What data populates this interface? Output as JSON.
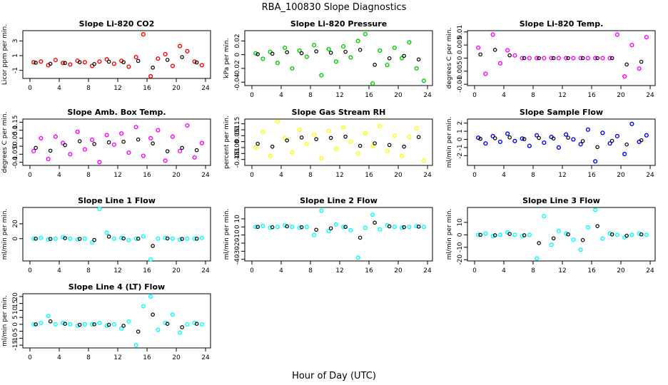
{
  "figure": {
    "title": "RBA_100830  Slope Diagnostics",
    "xlabel": "Hour of Day (UTC)"
  },
  "chart_data": [
    {
      "type": "scatter",
      "title": "Slope Li-820 CO2",
      "ylabel": "Licor ppm per min.",
      "xlim": [
        0,
        24
      ],
      "xticks": [
        0,
        4,
        8,
        12,
        16,
        20,
        24
      ],
      "ylim": [
        -2.1,
        4.4
      ],
      "yticks": [
        -1,
        1,
        3
      ],
      "color": "#ff0000",
      "x": [
        0.5,
        1.5,
        2.5,
        3.5,
        4.5,
        5.5,
        6.5,
        7.5,
        8.5,
        9.5,
        10.5,
        11.5,
        12.5,
        13.5,
        14.5,
        15.5,
        16.5,
        17.5,
        18.5,
        19.5,
        20.5,
        21.5,
        22.5,
        23.5
      ],
      "y": [
        0.1,
        0.2,
        -0.3,
        0.4,
        0.0,
        -0.2,
        0.3,
        0.1,
        -0.4,
        0.2,
        0.5,
        -0.1,
        0.3,
        -0.5,
        0.8,
        3.9,
        -1.8,
        0.6,
        1.2,
        -0.4,
        2.3,
        1.6,
        0.2,
        -0.3
      ]
    },
    {
      "type": "scatter",
      "title": "Slope Li-820 Pressure",
      "ylabel": "kPa per min.",
      "xlim": [
        0,
        24
      ],
      "xticks": [
        0,
        4,
        8,
        12,
        16,
        20,
        24
      ],
      "ylim": [
        -0.045,
        0.035
      ],
      "yticks": [
        -0.04,
        -0.02,
        0.0,
        0.02
      ],
      "color": "#00cc00",
      "x": [
        0.5,
        1.5,
        2.5,
        3.5,
        4.5,
        5.5,
        6.5,
        7.5,
        8.5,
        9.5,
        10.5,
        11.5,
        12.5,
        13.5,
        14.5,
        15.5,
        16.5,
        17.5,
        18.5,
        19.5,
        20.5,
        21.5,
        22.5,
        23.5
      ],
      "y": [
        0.002,
        -0.006,
        0.004,
        -0.012,
        0.01,
        -0.02,
        0.006,
        -0.003,
        0.014,
        -0.03,
        0.008,
        -0.01,
        0.012,
        -0.004,
        0.02,
        0.03,
        -0.042,
        0.006,
        -0.015,
        0.01,
        -0.005,
        0.018,
        -0.02,
        -0.038
      ]
    },
    {
      "type": "scatter",
      "title": "Slope Li-820 Temp.",
      "ylabel": "degrees C per min.",
      "xlim": [
        0,
        24
      ],
      "xticks": [
        0,
        4,
        8,
        12,
        16,
        20,
        24
      ],
      "ylim": [
        -0.0105,
        0.0105
      ],
      "yticks": [
        -0.01,
        -0.005,
        0.0,
        0.005,
        0.01
      ],
      "color": "#ff00ff",
      "x": [
        0.5,
        1.5,
        2.5,
        3.5,
        4.5,
        5.5,
        6.5,
        7.5,
        8.5,
        9.5,
        10.5,
        11.5,
        12.5,
        13.5,
        14.5,
        15.5,
        16.5,
        17.5,
        18.5,
        19.5,
        20.5,
        21.5,
        22.5,
        23.5
      ],
      "y": [
        0.004,
        -0.006,
        0.009,
        -0.002,
        0.003,
        0.001,
        0.0,
        0.0,
        0.0,
        0.0,
        0.0,
        0.0,
        0.0,
        0.0,
        0.0,
        0.0,
        0.0,
        0.0,
        0.0,
        0.009,
        -0.007,
        0.005,
        -0.004,
        0.008
      ]
    },
    {
      "type": "scatter",
      "title": "Slope Amb. Box Temp.",
      "ylabel": "degrees C per min.",
      "xlim": [
        0,
        24
      ],
      "xticks": [
        0,
        4,
        8,
        12,
        16,
        20,
        24
      ],
      "ylim": [
        -0.12,
        0.17
      ],
      "yticks": [
        -0.1,
        -0.05,
        0.0,
        0.05,
        0.1,
        0.15
      ],
      "color": "#ff00ff",
      "x": [
        0.5,
        1.5,
        2.5,
        3.5,
        4.5,
        5.5,
        6.5,
        7.5,
        8.5,
        9.5,
        10.5,
        11.5,
        12.5,
        13.5,
        14.5,
        15.5,
        16.5,
        17.5,
        18.5,
        19.5,
        20.5,
        21.5,
        22.5,
        23.5
      ],
      "y": [
        -0.03,
        0.05,
        -0.08,
        0.06,
        0.02,
        -0.05,
        0.09,
        -0.02,
        0.04,
        -0.1,
        0.07,
        0.01,
        0.08,
        -0.04,
        0.12,
        -0.06,
        0.05,
        0.1,
        -0.09,
        0.06,
        -0.03,
        0.13,
        -0.07,
        0.02
      ]
    },
    {
      "type": "scatter",
      "title": "Slope Gas Stream RH",
      "ylabel": "percent per min.",
      "xlim": [
        0,
        24
      ],
      "xticks": [
        0,
        4,
        8,
        12,
        16,
        20,
        24
      ],
      "ylim": [
        -0.2,
        0.19
      ],
      "yticks": [
        -0.15,
        -0.1,
        -0.05,
        0.0,
        0.05,
        0.1,
        0.15
      ],
      "color": "#ffff00",
      "x": [
        0.5,
        1.5,
        2.5,
        3.5,
        4.5,
        5.5,
        6.5,
        7.5,
        8.5,
        9.5,
        10.5,
        11.5,
        12.5,
        13.5,
        14.5,
        15.5,
        16.5,
        17.5,
        18.5,
        19.5,
        20.5,
        21.5,
        22.5,
        23.5
      ],
      "y": [
        -0.05,
        0.08,
        -0.12,
        0.17,
        0.03,
        -0.09,
        0.1,
        -0.02,
        0.06,
        -0.14,
        0.09,
        -0.06,
        0.12,
        0.0,
        -0.1,
        0.07,
        -0.04,
        0.13,
        -0.08,
        0.05,
        -0.12,
        0.04,
        0.11,
        -0.16
      ]
    },
    {
      "type": "scatter",
      "title": "Slope Sample Flow",
      "ylabel": "ml/min per min.",
      "xlim": [
        0,
        24
      ],
      "xticks": [
        0,
        4,
        8,
        12,
        16,
        20,
        24
      ],
      "ylim": [
        -3.2,
        2.5
      ],
      "yticks": [
        -2,
        -1,
        0,
        1,
        2
      ],
      "color": "#0000ff",
      "x": [
        0.5,
        1.5,
        2.5,
        3.5,
        4.5,
        5.5,
        6.5,
        7.5,
        8.5,
        9.5,
        10.5,
        11.5,
        12.5,
        13.5,
        14.5,
        15.5,
        16.5,
        17.5,
        18.5,
        19.5,
        20.5,
        21.5,
        22.5,
        23.5
      ],
      "y": [
        0.2,
        -0.5,
        0.4,
        -0.3,
        0.7,
        -0.2,
        0.1,
        -0.8,
        0.5,
        -0.4,
        0.3,
        -1.0,
        0.6,
        0.0,
        -0.6,
        1.2,
        -2.7,
        0.8,
        -0.5,
        0.4,
        -1.8,
        1.9,
        -0.3,
        0.5
      ]
    },
    {
      "type": "scatter",
      "title": "Slope Line 1 Flow",
      "ylabel": "ml/min per min.",
      "xlim": [
        0,
        24
      ],
      "xticks": [
        0,
        4,
        8,
        12,
        16,
        20,
        24
      ],
      "ylim": [
        -30,
        42
      ],
      "yticks": [
        0,
        20
      ],
      "color": "#00ffff",
      "x": [
        0.5,
        1.5,
        2.5,
        3.5,
        4.5,
        5.5,
        6.5,
        7.5,
        8.5,
        9.5,
        10.5,
        11.5,
        12.5,
        13.5,
        14.5,
        15.5,
        16.5,
        17.5,
        18.5,
        19.5,
        20.5,
        21.5,
        22.5,
        23.5
      ],
      "y": [
        0,
        1,
        -1,
        0,
        2,
        0,
        -1,
        0,
        -5,
        40,
        8,
        0,
        1,
        -2,
        0,
        3,
        -28,
        0,
        1,
        0,
        -1,
        0,
        0,
        1
      ]
    },
    {
      "type": "scatter",
      "title": "Slope Line 2 Flow",
      "ylabel": "ml/min per min.",
      "xlim": [
        0,
        24
      ],
      "xticks": [
        0,
        4,
        8,
        12,
        16,
        20,
        24
      ],
      "ylim": [
        -42,
        24
      ],
      "yticks": [
        -40,
        -30,
        -20,
        -10,
        0,
        10
      ],
      "color": "#00ffff",
      "x": [
        0.5,
        1.5,
        2.5,
        3.5,
        4.5,
        5.5,
        6.5,
        7.5,
        8.5,
        9.5,
        10.5,
        11.5,
        12.5,
        13.5,
        14.5,
        15.5,
        16.5,
        17.5,
        18.5,
        19.5,
        20.5,
        21.5,
        22.5,
        23.5
      ],
      "y": [
        0,
        1,
        -1,
        0,
        2,
        0,
        -1,
        0,
        -10,
        20,
        -5,
        3,
        0,
        -4,
        -38,
        -1,
        15,
        -3,
        2,
        0,
        -1,
        0,
        1,
        0
      ]
    },
    {
      "type": "scatter",
      "title": "Slope Line 3 Flow",
      "ylabel": "ml/min per min.",
      "xlim": [
        0,
        24
      ],
      "xticks": [
        0,
        4,
        8,
        12,
        16,
        20,
        24
      ],
      "ylim": [
        -21,
        22
      ],
      "yticks": [
        -20,
        -10,
        0,
        10
      ],
      "color": "#00ffff",
      "x": [
        0.5,
        1.5,
        2.5,
        3.5,
        4.5,
        5.5,
        6.5,
        7.5,
        8.5,
        9.5,
        10.5,
        11.5,
        12.5,
        13.5,
        14.5,
        15.5,
        16.5,
        17.5,
        18.5,
        19.5,
        20.5,
        21.5,
        22.5,
        23.5
      ],
      "y": [
        0,
        1,
        -1,
        0,
        2,
        0,
        -1,
        0,
        -19,
        15,
        -8,
        3,
        1,
        -4,
        -12,
        6,
        20,
        -3,
        1,
        0,
        -2,
        0,
        1,
        0
      ]
    },
    {
      "type": "scatter",
      "title": "Slope Line 4 (LT) Flow",
      "ylabel": "ml/min per min.",
      "xlim": [
        0,
        24
      ],
      "xticks": [
        0,
        4,
        8,
        12,
        16,
        20,
        24
      ],
      "ylim": [
        -17,
        22
      ],
      "yticks": [
        -15,
        -10,
        -5,
        0,
        5,
        10,
        15,
        20
      ],
      "color": "#00ffff",
      "x": [
        0.5,
        1.5,
        2.5,
        3.5,
        4.5,
        5.5,
        6.5,
        7.5,
        8.5,
        9.5,
        10.5,
        11.5,
        12.5,
        13.5,
        14.5,
        15.5,
        16.5,
        17.5,
        18.5,
        19.5,
        20.5,
        21.5,
        22.5,
        23.5
      ],
      "y": [
        0,
        1,
        6,
        0,
        1,
        0,
        -1,
        0,
        0,
        1,
        -1,
        0,
        -3,
        2,
        -15,
        13,
        20,
        -4,
        1,
        7,
        -6,
        0,
        1,
        0
      ]
    }
  ]
}
